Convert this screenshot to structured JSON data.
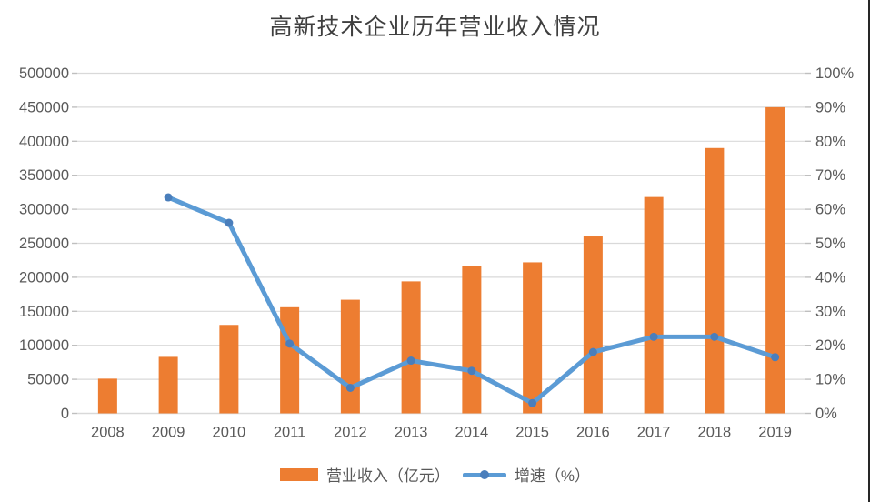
{
  "page": {
    "background": "#ffffff",
    "right_border_color": "#262626"
  },
  "chart_data": {
    "type": "combo-bar-line",
    "title": "高新技术企业历年营业收入情况",
    "categories": [
      "2008",
      "2009",
      "2010",
      "2011",
      "2012",
      "2013",
      "2014",
      "2015",
      "2016",
      "2017",
      "2018",
      "2019"
    ],
    "series": [
      {
        "name": "营业收入（亿元）",
        "type": "bar",
        "axis": "left",
        "color": "#ED7D31",
        "values": [
          51000,
          83000,
          130000,
          156000,
          167000,
          194000,
          216000,
          222000,
          260000,
          318000,
          390000,
          450000
        ]
      },
      {
        "name": "增速（%）",
        "type": "line",
        "axis": "right",
        "color": "#5B9BD5",
        "marker_color": "#4A7EBB",
        "values": [
          null,
          63.5,
          56,
          20.5,
          7.5,
          15.5,
          12.5,
          3,
          18,
          22.5,
          22.5,
          16.5
        ]
      }
    ],
    "y_left": {
      "min": 0,
      "max": 500000,
      "step": 50000,
      "ticks": [
        "0",
        "50000",
        "100000",
        "150000",
        "200000",
        "250000",
        "300000",
        "350000",
        "400000",
        "450000",
        "500000"
      ]
    },
    "y_right": {
      "min": 0,
      "max": 100,
      "step": 10,
      "ticks": [
        "0%",
        "10%",
        "20%",
        "30%",
        "40%",
        "50%",
        "60%",
        "70%",
        "80%",
        "90%",
        "100%"
      ]
    },
    "grid": {
      "show": true,
      "color": "#D9D9D9",
      "tick_color": "#BFBFBF"
    },
    "legend_position": "bottom",
    "text_color": "#595959",
    "title_color": "#3f3f3f"
  }
}
